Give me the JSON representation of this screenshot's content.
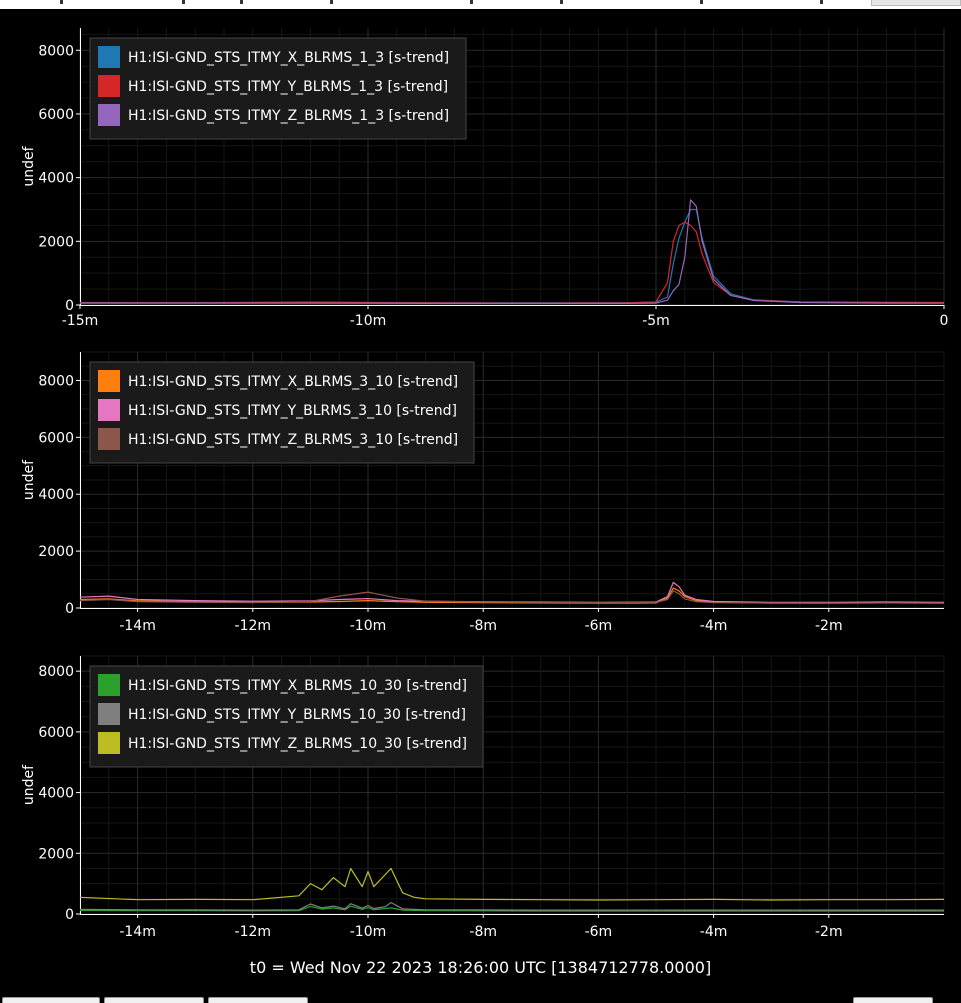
{
  "footer": {
    "t0_label": "t0 = Wed Nov 22 2023 18:26:00 UTC [1384712778.0000]"
  },
  "colors": {
    "background": "#000000",
    "grid": "#2a2a2a",
    "axis": "#ffffff"
  },
  "chart_data": [
    {
      "type": "line",
      "ylabel": "undef",
      "ylim": [
        0,
        8700
      ],
      "xlim": [
        -15,
        0
      ],
      "yticks": [
        0,
        2000,
        4000,
        6000,
        8000
      ],
      "xticks": [
        -15,
        -10,
        -5,
        0
      ],
      "xtick_labels": [
        "-15m",
        "-10m",
        "-5m",
        "0"
      ],
      "grid": true,
      "legend_position": "top-left",
      "x": [
        -15,
        -13,
        -11,
        -9,
        -7,
        -5.5,
        -5,
        -4.8,
        -4.7,
        -4.6,
        -4.5,
        -4.4,
        -4.3,
        -4.2,
        -4.0,
        -3.7,
        -3.3,
        -2.5,
        -1,
        0
      ],
      "series": [
        {
          "name": "H1:ISI-GND_STS_ITMY_X_BLRMS_1_3 [s-trend]",
          "color": "#1f77b4",
          "values": [
            80,
            75,
            90,
            70,
            65,
            70,
            90,
            250,
            1300,
            2100,
            2600,
            3000,
            3000,
            2100,
            900,
            350,
            160,
            100,
            85,
            80
          ]
        },
        {
          "name": "H1:ISI-GND_STS_ITMY_Y_BLRMS_1_3 [s-trend]",
          "color": "#d62728",
          "values": [
            70,
            70,
            85,
            65,
            60,
            65,
            100,
            700,
            2000,
            2500,
            2600,
            2500,
            2300,
            1600,
            700,
            300,
            150,
            95,
            80,
            75
          ]
        },
        {
          "name": "H1:ISI-GND_STS_ITMY_Z_BLRMS_1_3 [s-trend]",
          "color": "#9467bd",
          "values": [
            55,
            55,
            60,
            50,
            50,
            50,
            60,
            150,
            450,
            650,
            1500,
            3300,
            3100,
            2000,
            800,
            300,
            140,
            80,
            60,
            55
          ]
        }
      ]
    },
    {
      "type": "line",
      "ylabel": "undef",
      "ylim": [
        0,
        9000
      ],
      "xlim": [
        -15,
        0
      ],
      "yticks": [
        0,
        2000,
        4000,
        6000,
        8000
      ],
      "xticks": [
        -14,
        -12,
        -10,
        -8,
        -6,
        -4,
        -2
      ],
      "xtick_labels": [
        "-14m",
        "-12m",
        "-10m",
        "-8m",
        "-6m",
        "-4m",
        "-2m"
      ],
      "grid": true,
      "legend_position": "top-left",
      "x": [
        -15,
        -14.5,
        -14,
        -13,
        -12,
        -11,
        -10.5,
        -10,
        -9.5,
        -9,
        -8,
        -7,
        -6,
        -5,
        -4.8,
        -4.7,
        -4.6,
        -4.5,
        -4.3,
        -4,
        -3,
        -2,
        -1,
        0
      ],
      "series": [
        {
          "name": "H1:ISI-GND_STS_ITMY_X_BLRMS_3_10 [s-trend]",
          "color": "#ff7f0e",
          "values": [
            300,
            320,
            250,
            220,
            200,
            210,
            230,
            260,
            220,
            200,
            190,
            180,
            170,
            180,
            350,
            700,
            600,
            400,
            260,
            200,
            170,
            170,
            180,
            170
          ]
        },
        {
          "name": "H1:ISI-GND_STS_ITMY_Y_BLRMS_3_10 [s-trend]",
          "color": "#e377c2",
          "values": [
            380,
            420,
            300,
            260,
            240,
            250,
            300,
            330,
            260,
            240,
            220,
            210,
            200,
            210,
            400,
            900,
            750,
            450,
            300,
            230,
            200,
            200,
            210,
            200
          ]
        },
        {
          "name": "H1:ISI-GND_STS_ITMY_Z_BLRMS_3_10 [s-trend]",
          "color": "#8c564b",
          "values": [
            260,
            300,
            220,
            200,
            190,
            230,
            420,
            560,
            350,
            240,
            210,
            200,
            190,
            200,
            300,
            600,
            500,
            320,
            220,
            190,
            180,
            175,
            180,
            175
          ]
        }
      ]
    },
    {
      "type": "line",
      "ylabel": "undef",
      "ylim": [
        0,
        8500
      ],
      "xlim": [
        -15,
        0
      ],
      "yticks": [
        0,
        2000,
        4000,
        6000,
        8000
      ],
      "xticks": [
        -14,
        -12,
        -10,
        -8,
        -6,
        -4,
        -2
      ],
      "xtick_labels": [
        "-14m",
        "-12m",
        "-10m",
        "-8m",
        "-6m",
        "-4m",
        "-2m"
      ],
      "grid": true,
      "legend_position": "top-left",
      "x": [
        -15,
        -14,
        -13,
        -12,
        -11.2,
        -11,
        -10.8,
        -10.6,
        -10.4,
        -10.3,
        -10.1,
        -10.0,
        -9.9,
        -9.7,
        -9.6,
        -9.4,
        -9.2,
        -9,
        -8,
        -7,
        -6,
        -5,
        -4,
        -3,
        -2,
        -1,
        0
      ],
      "series": [
        {
          "name": "H1:ISI-GND_STS_ITMY_X_BLRMS_10_30 [s-trend]",
          "color": "#2ca02c",
          "values": [
            120,
            110,
            110,
            105,
            110,
            250,
            160,
            200,
            140,
            260,
            150,
            210,
            140,
            180,
            200,
            130,
            120,
            110,
            105,
            100,
            100,
            100,
            100,
            100,
            100,
            100,
            100
          ]
        },
        {
          "name": "H1:ISI-GND_STS_ITMY_Y_BLRMS_10_30 [s-trend]",
          "color": "#7f7f7f",
          "values": [
            150,
            140,
            135,
            130,
            140,
            330,
            200,
            260,
            170,
            340,
            190,
            280,
            180,
            240,
            380,
            170,
            150,
            140,
            135,
            130,
            130,
            130,
            130,
            130,
            130,
            130,
            130
          ]
        },
        {
          "name": "H1:ISI-GND_STS_ITMY_Z_BLRMS_10_30 [s-trend]",
          "color": "#bcbd22",
          "values": [
            550,
            470,
            480,
            470,
            600,
            1000,
            800,
            1200,
            900,
            1500,
            900,
            1400,
            900,
            1300,
            1500,
            700,
            550,
            500,
            480,
            470,
            460,
            470,
            480,
            460,
            470,
            470,
            480
          ]
        }
      ]
    }
  ]
}
